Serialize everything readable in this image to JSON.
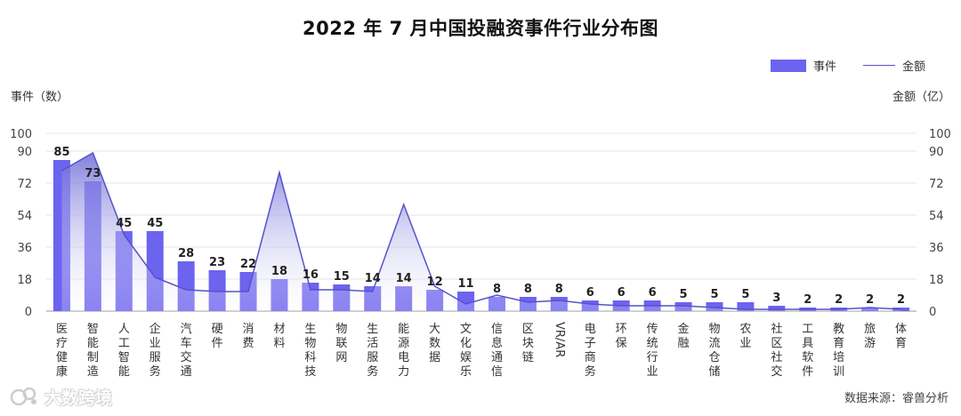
{
  "chart_data": {
    "type": "bar",
    "title": "2022 年 7 月中国投融资事件行业分布图",
    "y_left_label": "事件（数）",
    "y_right_label": "金额（亿）",
    "ylim": [
      0,
      100
    ],
    "y_ticks": [
      0,
      18,
      36,
      54,
      72,
      90,
      100
    ],
    "legend_position": "top-right",
    "grid": true,
    "categories": [
      "医疗健康",
      "智能制造",
      "人工智能",
      "企业服务",
      "汽车交通",
      "硬件",
      "消费",
      "材料",
      "生物科技",
      "物联网",
      "生活服务",
      "能源电力",
      "大数据",
      "文化娱乐",
      "信息通信",
      "区块链",
      "VR/AR",
      "电子商务",
      "环保",
      "传统行业",
      "金融",
      "物流仓储",
      "农业",
      "社区社交",
      "工具软件",
      "教育培训",
      "旅游",
      "体育"
    ],
    "series": [
      {
        "name": "事件",
        "type": "bar",
        "color": "#6c63ef",
        "values": [
          85,
          73,
          45,
          45,
          28,
          23,
          22,
          18,
          16,
          15,
          14,
          14,
          12,
          11,
          8,
          8,
          8,
          6,
          6,
          6,
          5,
          5,
          5,
          3,
          2,
          2,
          2,
          2
        ]
      },
      {
        "name": "金额",
        "type": "area-line",
        "color": "#5553c9",
        "values": [
          79,
          89,
          43,
          19,
          12,
          11,
          11,
          78,
          12,
          12,
          11,
          60,
          14,
          4,
          9,
          5,
          6,
          4,
          3,
          3,
          3,
          2,
          1,
          1,
          1,
          1,
          2,
          1
        ]
      }
    ]
  },
  "source_note": "数据来源：睿兽分析",
  "watermark": "大数跨境"
}
